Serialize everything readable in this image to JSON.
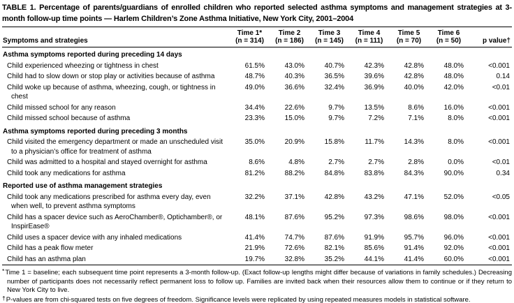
{
  "colors": {
    "text": "#000000",
    "background": "#ffffff",
    "rule": "#000000"
  },
  "title": "TABLE 1. Percentage of parents/guardians of enrolled children who reported selected asthma symptoms and management strategies at 3-month follow-up time points — Harlem Children’s Zone Asthma Initiative, New York City, 2001–2004",
  "table": {
    "row_header": "Symptoms and strategies",
    "columns": [
      {
        "label": "Time 1*",
        "n": "(n = 314)"
      },
      {
        "label": "Time 2",
        "n": "(n = 186)"
      },
      {
        "label": "Time 3",
        "n": "(n = 145)"
      },
      {
        "label": "Time 4",
        "n": "(n = 111)"
      },
      {
        "label": "Time 5",
        "n": "(n = 70)"
      },
      {
        "label": "Time 6",
        "n": "(n = 50)"
      }
    ],
    "p_value_header": "p value†",
    "sections": [
      {
        "header": "Asthma symptoms reported during preceding 14 days",
        "rows": [
          {
            "label": "Child experienced wheezing or tightness in chest",
            "values": [
              "61.5%",
              "43.0%",
              "40.7%",
              "42.3%",
              "42.8%",
              "48.0%"
            ],
            "p": "<0.001"
          },
          {
            "label": "Child had to slow down or stop play or activities because of asthma",
            "values": [
              "48.7%",
              "40.3%",
              "36.5%",
              "39.6%",
              "42.8%",
              "48.0%"
            ],
            "p": "0.14"
          },
          {
            "label": "Child woke up because of asthma, wheezing, cough, or tightness in chest",
            "values": [
              "49.0%",
              "36.6%",
              "32.4%",
              "36.9%",
              "40.0%",
              "42.0%"
            ],
            "p": "<0.01"
          },
          {
            "label": "Child missed school for any reason",
            "values": [
              "34.4%",
              "22.6%",
              "9.7%",
              "13.5%",
              "8.6%",
              "16.0%"
            ],
            "p": "<0.001"
          },
          {
            "label": "Child missed school because of asthma",
            "values": [
              "23.3%",
              "15.0%",
              "9.7%",
              "7.2%",
              "7.1%",
              "8.0%"
            ],
            "p": "<0.001"
          }
        ]
      },
      {
        "header": "Asthma symptoms reported during preceding 3 months",
        "rows": [
          {
            "label": "Child visited the emergency department or made an unscheduled visit to a physician’s office for treatment of asthma",
            "values": [
              "35.0%",
              "20.9%",
              "15.8%",
              "11.7%",
              "14.3%",
              "8.0%"
            ],
            "p": "<0.001"
          },
          {
            "label": "Child was admitted to a hospital and stayed overnight for asthma",
            "values": [
              "8.6%",
              "4.8%",
              "2.7%",
              "2.7%",
              "2.8%",
              "0.0%"
            ],
            "p": "<0.01"
          },
          {
            "label": "Child took any medications for asthma",
            "values": [
              "81.2%",
              "88.2%",
              "84.8%",
              "83.8%",
              "84.3%",
              "90.0%"
            ],
            "p": "0.34"
          }
        ]
      },
      {
        "header": "Reported use of asthma management strategies",
        "rows": [
          {
            "label": "Child took any medications prescribed for asthma every day, even when well, to prevent asthma symptoms",
            "values": [
              "32.2%",
              "37.1%",
              "42.8%",
              "43.2%",
              "47.1%",
              "52.0%"
            ],
            "p": "<0.05"
          },
          {
            "label": "Child has a spacer device such as AeroChamber®, Optichamber®, or InspirEase®",
            "values": [
              "48.1%",
              "87.6%",
              "95.2%",
              "97.3%",
              "98.6%",
              "98.0%"
            ],
            "p": "<0.001"
          },
          {
            "label": "Child uses a spacer device with any inhaled medications",
            "values": [
              "41.4%",
              "74.7%",
              "87.6%",
              "91.9%",
              "95.7%",
              "96.0%"
            ],
            "p": "<0.001"
          },
          {
            "label": "Child has a peak flow meter",
            "values": [
              "21.9%",
              "72.6%",
              "82.1%",
              "85.6%",
              "91.4%",
              "92.0%"
            ],
            "p": "<0.001"
          },
          {
            "label": "Child has an asthma plan",
            "values": [
              "19.7%",
              "32.8%",
              "35.2%",
              "44.1%",
              "41.4%",
              "60.0%"
            ],
            "p": "<0.001"
          }
        ]
      }
    ]
  },
  "footnotes": [
    {
      "marker": "*",
      "text": "Time 1 = baseline; each subsequent time point represents a 3-month follow-up. (Exact follow-up lengths might differ because of variations in family schedules.) Decreasing number of participants does not necessarily reflect permanent loss to follow up. Families are invited back when their resources allow them to continue or if they return to New York City to live."
    },
    {
      "marker": "†",
      "text": "P-values are from chi-squared tests on five degrees of freedom. Significance levels were replicated by using repeated measures models in statistical software."
    }
  ]
}
